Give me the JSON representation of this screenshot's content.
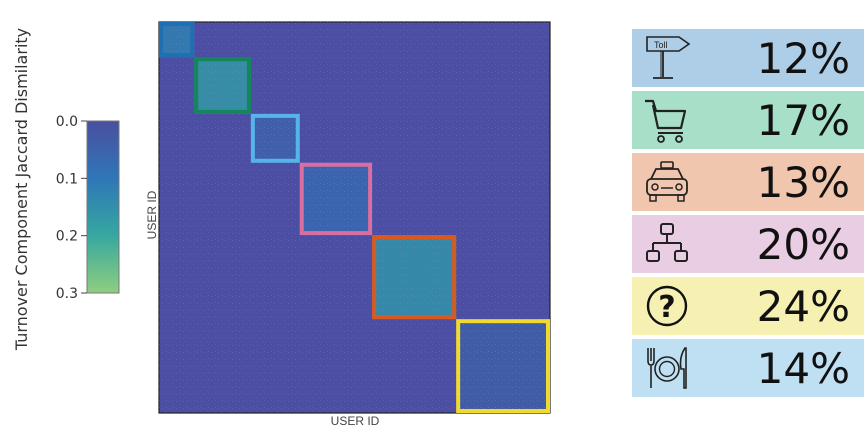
{
  "colorbar": {
    "label": "Turnover Component Jaccard Dismilarity",
    "ticks": [
      "0.0",
      "0.1",
      "0.2",
      "0.3"
    ],
    "tick_values": [
      0.0,
      0.1,
      0.2,
      0.3
    ],
    "range": [
      0.0,
      0.3
    ],
    "colors": [
      "#4a4f9e",
      "#2f76b8",
      "#36a7a0",
      "#8fce7f"
    ]
  },
  "chart_data": {
    "type": "heatmap",
    "xlabel": "USER ID",
    "ylabel": "USER ID",
    "background_value": 0.02,
    "clusters": [
      {
        "start": 0.0,
        "end": 0.09,
        "border": "#1f6fb2",
        "fill_value": 0.12
      },
      {
        "start": 0.09,
        "end": 0.235,
        "border": "#14875a",
        "fill_value": 0.17
      },
      {
        "start": 0.235,
        "end": 0.36,
        "border": "#56b4e9",
        "fill_value": 0.05
      },
      {
        "start": 0.36,
        "end": 0.545,
        "border": "#d96fa0",
        "fill_value": 0.07
      },
      {
        "start": 0.545,
        "end": 0.76,
        "border": "#d95a1f",
        "fill_value": 0.16
      },
      {
        "start": 0.76,
        "end": 1.0,
        "border": "#f0da2f",
        "fill_value": 0.04
      }
    ]
  },
  "legend": [
    {
      "icon": "toll-sign-icon",
      "icon_text": "Toll",
      "percent": "12%",
      "bg": "#aecde6"
    },
    {
      "icon": "shopping-cart-icon",
      "icon_text": "",
      "percent": "17%",
      "bg": "#a8dfc8"
    },
    {
      "icon": "taxi-icon",
      "icon_text": "",
      "percent": "13%",
      "bg": "#f1c6ae"
    },
    {
      "icon": "network-hierarchy-icon",
      "icon_text": "",
      "percent": "20%",
      "bg": "#e9cde3"
    },
    {
      "icon": "question-mark-icon",
      "icon_text": "?",
      "percent": "24%",
      "bg": "#f6f0b2"
    },
    {
      "icon": "restaurant-icon",
      "icon_text": "",
      "percent": "14%",
      "bg": "#bfe0f3"
    }
  ]
}
